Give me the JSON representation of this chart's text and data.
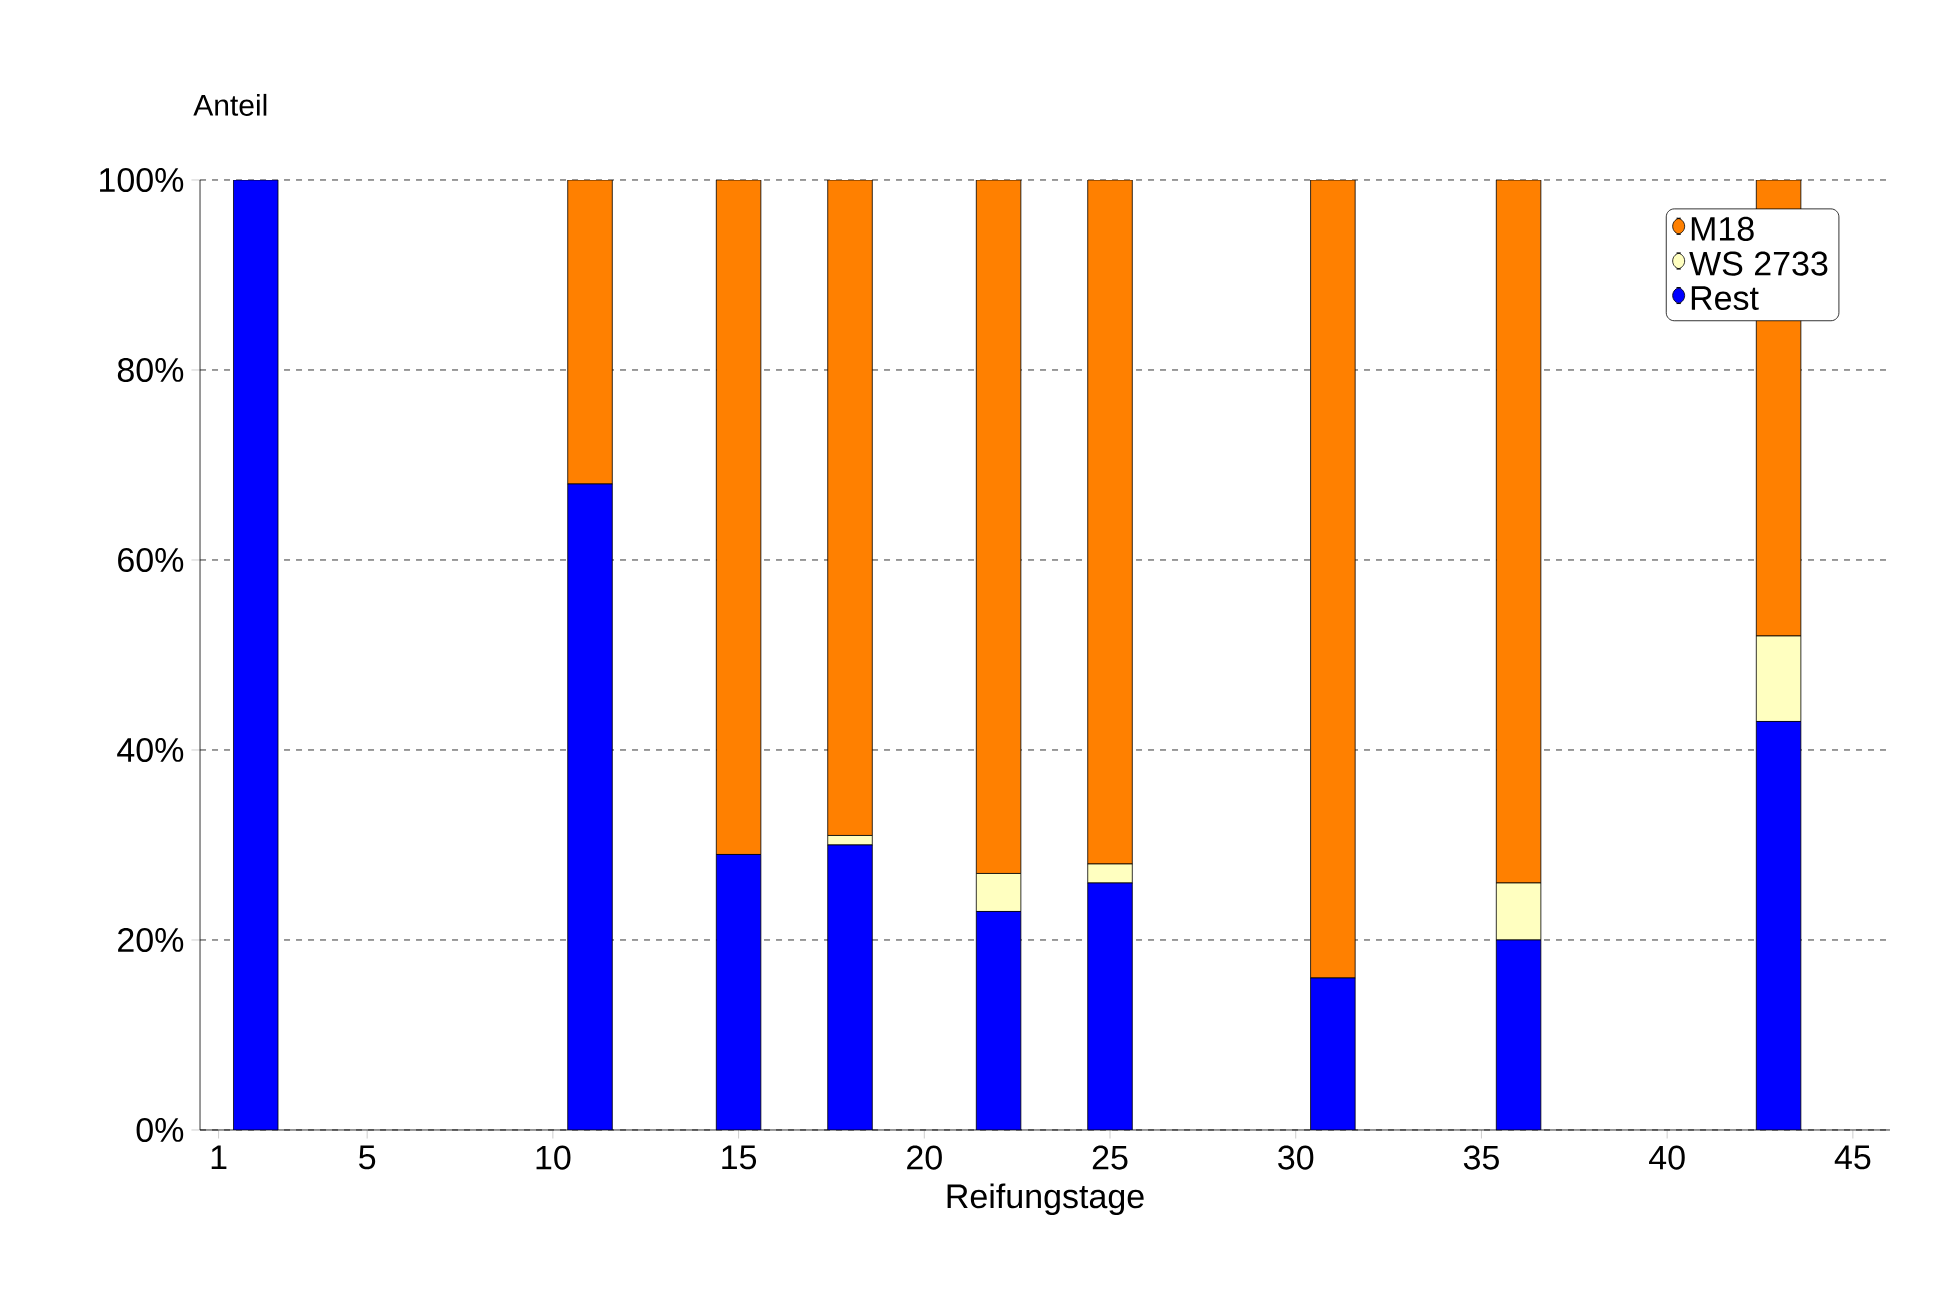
{
  "chart_data": {
    "type": "bar",
    "stacked": true,
    "xlabel": "Reifungstage",
    "ylabel": "Anteil",
    "x": [
      2,
      11,
      15,
      18,
      22,
      25,
      31,
      36,
      43
    ],
    "series": [
      {
        "name": "Rest",
        "color": "#0000ff",
        "values": [
          100,
          68,
          29,
          30,
          23,
          26,
          16,
          20,
          43
        ]
      },
      {
        "name": "WS 2733",
        "color": "#ffffc0",
        "values": [
          0,
          0,
          0,
          1,
          4,
          2,
          0,
          6,
          9
        ]
      },
      {
        "name": "M18",
        "color": "#ff8000",
        "values": [
          0,
          32,
          71,
          69,
          73,
          72,
          84,
          74,
          48
        ]
      }
    ],
    "xlim": [
      0.5,
      46
    ],
    "xticks": [
      1,
      5,
      10,
      15,
      20,
      25,
      30,
      35,
      40,
      45
    ],
    "ylim": [
      0,
      100
    ],
    "yticks": [
      {
        "value": 0,
        "label": "0%"
      },
      {
        "value": 20,
        "label": "20%"
      },
      {
        "value": 40,
        "label": "40%"
      },
      {
        "value": 60,
        "label": "60%"
      },
      {
        "value": 80,
        "label": "80%"
      },
      {
        "value": 100,
        "label": "100%"
      }
    ],
    "grid": "y",
    "legend": "top right"
  }
}
